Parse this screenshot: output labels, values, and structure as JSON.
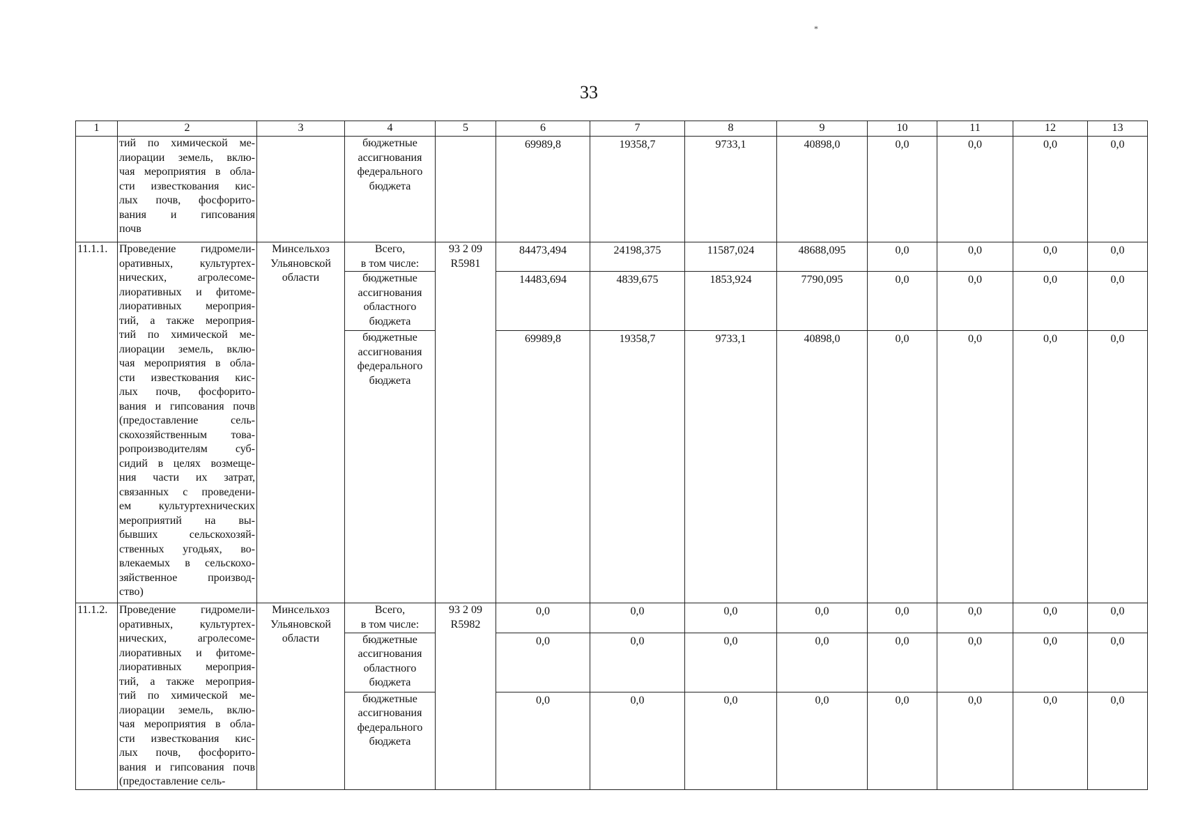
{
  "page_number": "33",
  "corner_mark": "*",
  "header": [
    "1",
    "2",
    "3",
    "4",
    "5",
    "6",
    "7",
    "8",
    "9",
    "10",
    "11",
    "12",
    "13"
  ],
  "continuation": {
    "description_lines": [
      "тий по химической ме-",
      "лиорации земель, вклю-",
      "чая мероприятия в обла-",
      "сти известкования кис-",
      "лых почв, фосфорито-",
      "вания и гипсования",
      "почв"
    ],
    "funding_label_lines": [
      "бюджетные",
      "ассигнования",
      "федерального",
      "бюджета"
    ],
    "values": [
      "69989,8",
      "19358,7",
      "9733,1",
      "40898,0",
      "0,0",
      "0,0",
      "0,0",
      "0,0"
    ]
  },
  "items": [
    {
      "number": "11.1.1.",
      "description_lines": [
        "Проведение гидромели-",
        "оративных, культуртех-",
        "нических, агролесоме-",
        "лиоративных и фитоме-",
        "лиоративных мероприя-",
        "тий, а также мероприя-",
        "тий по химической ме-",
        "лиорации земель, вклю-",
        "чая мероприятия в обла-",
        "сти известкования кис-",
        "лых почв, фосфорито-",
        "вания и гипсования почв",
        "(предоставление сель-",
        "скохозяйственным това-",
        "ропроизводителям суб-",
        "сидий в целях возмеще-",
        "ния части их затрат,",
        "связанных с проведени-",
        "ем культуртехнических",
        "мероприятий на вы-",
        "бывших сельскохозяй-",
        "ственных угодьях, во-",
        "влекаемых в сельскохо-",
        "зяйственное производ-",
        "ство)"
      ],
      "executor_lines": [
        "Минсельхоз",
        "Ульяновской",
        "области"
      ],
      "code_lines": [
        "93 2 09",
        "R5981"
      ],
      "rows": [
        {
          "label_lines": [
            "Всего,",
            "в том числе:"
          ],
          "values": [
            "84473,494",
            "24198,375",
            "11587,024",
            "48688,095",
            "0,0",
            "0,0",
            "0,0",
            "0,0"
          ]
        },
        {
          "label_lines": [
            "бюджетные",
            "ассигнования",
            "областного",
            "бюджета"
          ],
          "values": [
            "14483,694",
            "4839,675",
            "1853,924",
            "7790,095",
            "0,0",
            "0,0",
            "0,0",
            "0,0"
          ]
        },
        {
          "label_lines": [
            "бюджетные",
            "ассигнования",
            "федерального",
            "бюджета"
          ],
          "values": [
            "69989,8",
            "19358,7",
            "9733,1",
            "40898,0",
            "0,0",
            "0,0",
            "0,0",
            "0,0"
          ]
        }
      ]
    },
    {
      "number": "11.1.2.",
      "description_lines": [
        "Проведение гидромели-",
        "оративных, культуртех-",
        "нических, агролесоме-",
        "лиоративных и фитоме-",
        "лиоративных мероприя-",
        "тий, а также мероприя-",
        "тий по химической ме-",
        "лиорации земель, вклю-",
        "чая мероприятия в обла-",
        "сти известкования кис-",
        "лых почв, фосфорито-",
        "вания и гипсования почв",
        "(предоставление сель-"
      ],
      "executor_lines": [
        "Минсельхоз",
        "Ульяновской",
        "области"
      ],
      "code_lines": [
        "93 2 09",
        "R5982"
      ],
      "rows": [
        {
          "label_lines": [
            "Всего,",
            "в том числе:"
          ],
          "values": [
            "0,0",
            "0,0",
            "0,0",
            "0,0",
            "0,0",
            "0,0",
            "0,0",
            "0,0"
          ]
        },
        {
          "label_lines": [
            "бюджетные",
            "ассигнования",
            "областного",
            "бюджета"
          ],
          "values": [
            "0,0",
            "0,0",
            "0,0",
            "0,0",
            "0,0",
            "0,0",
            "0,0",
            "0,0"
          ]
        },
        {
          "label_lines": [
            "бюджетные",
            "ассигнования",
            "федерального",
            "бюджета"
          ],
          "values": [
            "0,0",
            "0,0",
            "0,0",
            "0,0",
            "0,0",
            "0,0",
            "0,0",
            "0,0"
          ]
        }
      ]
    }
  ]
}
